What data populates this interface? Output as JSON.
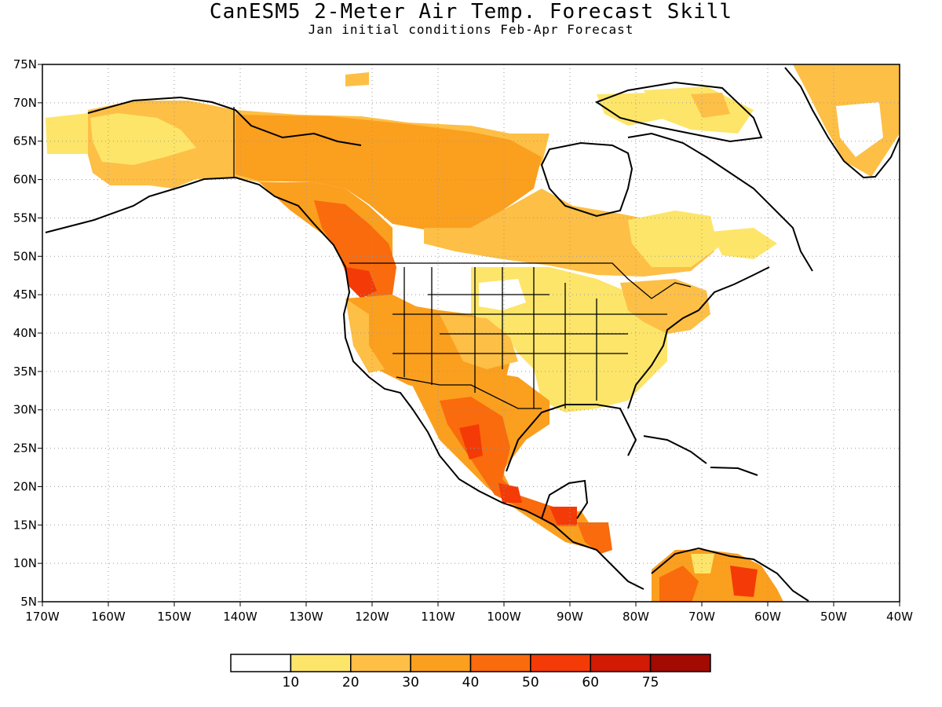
{
  "title": "CanESM5 2-Meter Air Temp. Forecast Skill",
  "subtitle": "Jan initial conditions   Feb-Apr Forecast",
  "map": {
    "lon_range": [
      -170,
      -40
    ],
    "lat_range": [
      5,
      75
    ],
    "lon_labels": [
      "170W",
      "160W",
      "150W",
      "140W",
      "130W",
      "120W",
      "110W",
      "100W",
      "90W",
      "80W",
      "70W",
      "60W",
      "50W",
      "40W"
    ],
    "lat_labels": [
      "75N",
      "70N",
      "65N",
      "60N",
      "55N",
      "50N",
      "45N",
      "40N",
      "35N",
      "30N",
      "25N",
      "20N",
      "15N",
      "10N",
      "5N"
    ],
    "grid": true,
    "colors": {
      "white": "#ffffff",
      "c10_20": "#fde56a",
      "c20_30": "#fdbf45",
      "c30_40": "#fb9f1e",
      "c40_50": "#f96b0c",
      "c50_60": "#f43a06",
      "c60_75": "#d21a04",
      "c75": "#a30a02"
    }
  },
  "colorbar": {
    "labels": [
      "10",
      "20",
      "30",
      "40",
      "50",
      "60",
      "75"
    ],
    "colors": [
      "#ffffff",
      "#fde56a",
      "#fdbf45",
      "#fb9f1e",
      "#f96b0c",
      "#f43a06",
      "#d21a04",
      "#a30a02"
    ]
  }
}
